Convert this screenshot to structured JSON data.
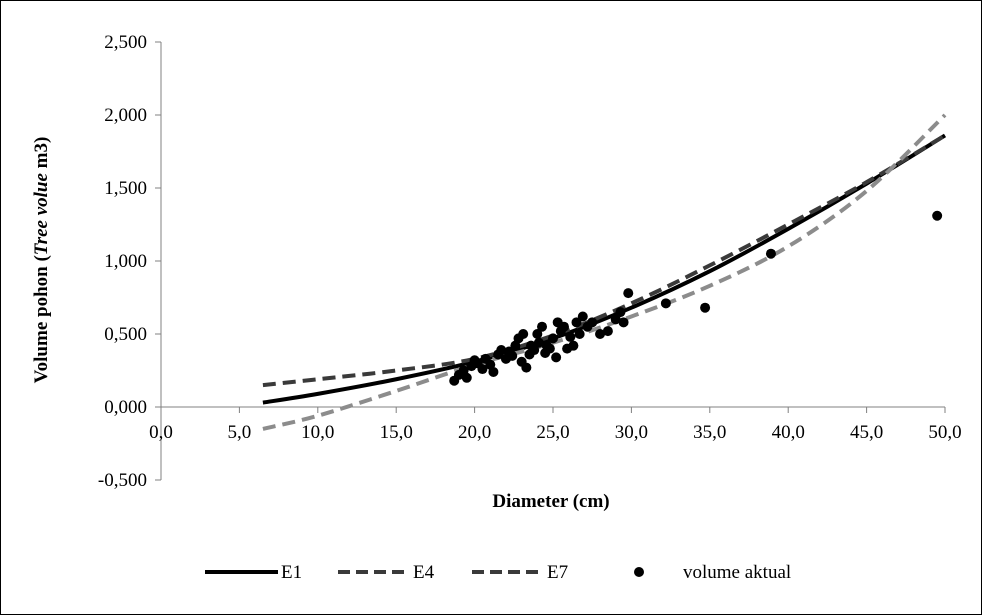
{
  "chart_data": {
    "type": "scatter",
    "xlabel": "Diameter (cm)",
    "ylabel": {
      "prefix": "Volume pohon (",
      "italic": "Tree volue",
      "suffix": " m3)"
    },
    "xlim": [
      0,
      50
    ],
    "ylim": [
      -0.5,
      2.5
    ],
    "x_ticks": [
      "0,0",
      "5,0",
      "10,0",
      "15,0",
      "20,0",
      "25,0",
      "30,0",
      "35,0",
      "40,0",
      "45,0",
      "50,0"
    ],
    "y_ticks": [
      "2,500",
      "2,000",
      "1,500",
      "1,000",
      "0,500",
      "0,000",
      "-0,500"
    ],
    "grid": false,
    "legend_position": "bottom",
    "series": [
      {
        "name": "E1",
        "kind": "line",
        "style": "solid",
        "color": "#000000",
        "x": [
          6.5,
          10,
          15,
          20,
          25,
          30,
          35,
          40,
          45,
          50
        ],
        "y": [
          0.03,
          0.09,
          0.19,
          0.31,
          0.47,
          0.68,
          0.93,
          1.22,
          1.53,
          1.86
        ]
      },
      {
        "name": "E4",
        "kind": "line",
        "style": "dashed",
        "color": "#3a3a3a",
        "x": [
          6.5,
          10,
          15,
          20,
          25,
          30,
          35,
          40,
          45,
          50
        ],
        "y": [
          0.15,
          0.19,
          0.25,
          0.33,
          0.49,
          0.71,
          0.97,
          1.25,
          1.54,
          1.86
        ]
      },
      {
        "name": "E7",
        "kind": "line",
        "style": "dashed",
        "color": "#8c8c8c",
        "x": [
          6.5,
          10,
          15,
          20,
          25,
          30,
          35,
          40,
          45,
          50
        ],
        "y": [
          -0.15,
          -0.06,
          0.11,
          0.29,
          0.44,
          0.62,
          0.83,
          1.1,
          1.48,
          2.0
        ]
      },
      {
        "name": "volume aktual",
        "kind": "scatter",
        "color": "#000000",
        "points": [
          [
            18.7,
            0.18
          ],
          [
            19.0,
            0.22
          ],
          [
            19.3,
            0.25
          ],
          [
            19.5,
            0.2
          ],
          [
            19.8,
            0.28
          ],
          [
            20.0,
            0.32
          ],
          [
            20.2,
            0.3
          ],
          [
            20.5,
            0.26
          ],
          [
            20.7,
            0.33
          ],
          [
            21.0,
            0.29
          ],
          [
            21.2,
            0.24
          ],
          [
            21.5,
            0.36
          ],
          [
            21.7,
            0.39
          ],
          [
            22.0,
            0.33
          ],
          [
            22.2,
            0.38
          ],
          [
            22.4,
            0.35
          ],
          [
            22.6,
            0.42
          ],
          [
            22.8,
            0.47
          ],
          [
            23.0,
            0.31
          ],
          [
            23.1,
            0.5
          ],
          [
            23.3,
            0.27
          ],
          [
            23.5,
            0.36
          ],
          [
            23.6,
            0.42
          ],
          [
            23.8,
            0.39
          ],
          [
            24.0,
            0.5
          ],
          [
            24.1,
            0.44
          ],
          [
            24.3,
            0.55
          ],
          [
            24.5,
            0.37
          ],
          [
            24.6,
            0.42
          ],
          [
            24.8,
            0.4
          ],
          [
            25.0,
            0.47
          ],
          [
            25.2,
            0.34
          ],
          [
            25.3,
            0.58
          ],
          [
            25.5,
            0.52
          ],
          [
            25.7,
            0.55
          ],
          [
            25.9,
            0.4
          ],
          [
            26.1,
            0.48
          ],
          [
            26.3,
            0.42
          ],
          [
            26.5,
            0.58
          ],
          [
            26.7,
            0.5
          ],
          [
            26.9,
            0.62
          ],
          [
            27.2,
            0.55
          ],
          [
            27.5,
            0.58
          ],
          [
            28.0,
            0.5
          ],
          [
            28.5,
            0.52
          ],
          [
            29.0,
            0.6
          ],
          [
            29.3,
            0.65
          ],
          [
            29.5,
            0.58
          ],
          [
            29.8,
            0.78
          ],
          [
            32.2,
            0.71
          ],
          [
            34.7,
            0.68
          ],
          [
            38.9,
            1.05
          ],
          [
            49.5,
            1.31
          ]
        ]
      }
    ]
  }
}
